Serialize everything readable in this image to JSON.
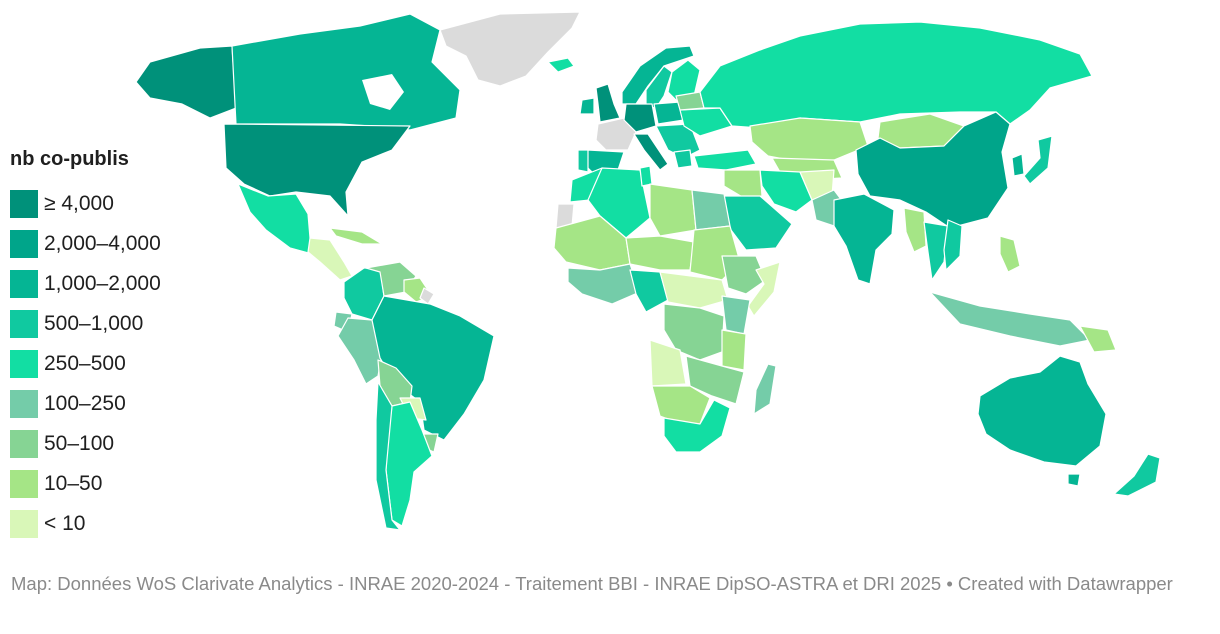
{
  "legend": {
    "title": "nb co-publis",
    "items": [
      {
        "label": "≥ 4,000",
        "color": "#00917a"
      },
      {
        "label": "2,000–4,000",
        "color": "#00a58a"
      },
      {
        "label": "1,000–2,000",
        "color": "#05b594"
      },
      {
        "label": "500–1,000",
        "color": "#10c9a0"
      },
      {
        "label": "250–500",
        "color": "#12dea3"
      },
      {
        "label": "100–250",
        "color": "#74cca9"
      },
      {
        "label": "50–100",
        "color": "#86d494"
      },
      {
        "label": "10–50",
        "color": "#a5e586"
      },
      {
        "label": "< 10",
        "color": "#d9f7b8"
      }
    ]
  },
  "no_data_color": "#dbdbdb",
  "footer": {
    "text": "Map: Données WoS Clarivate Analytics - INRAE 2020-2024 - Traitement BBI - INRAE DipSO-ASTRA et DRI 2025 • Created with Datawrapper"
  }
}
